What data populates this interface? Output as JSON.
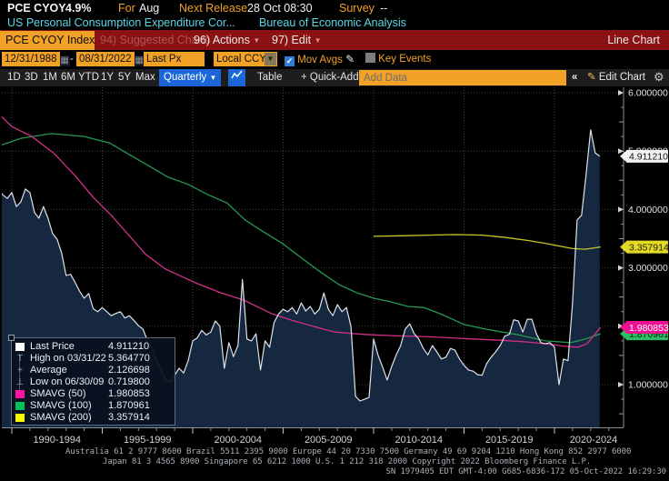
{
  "header": {
    "ticker": "PCE CYOY",
    "last_value": "4.9%",
    "for_label": "For",
    "for_value": "Aug",
    "next_release_label": "Next Release",
    "next_release_value": "28 Oct 08:30",
    "survey_label": "Survey",
    "survey_value": "--",
    "description": "US Personal Consumption Expenditure Cor...",
    "source": "Bureau of Economic Analysis"
  },
  "menubar": {
    "security_box": "PCE CYOY Index",
    "suggested_charts": "94) Suggested Charts",
    "actions": "96) Actions",
    "edit": "97) Edit",
    "right_label": "Line Chart"
  },
  "controls": {
    "date_from": "12/31/1988",
    "dash": "-",
    "date_to": "08/31/2022",
    "px_type": "Last Px",
    "currency": "Local CCY",
    "mov_avgs_label": "Mov Avgs",
    "mov_avgs_checked": true,
    "key_events_label": "Key Events",
    "key_events_checked": false
  },
  "toolbar": {
    "ranges": [
      "1D",
      "3D",
      "1M",
      "6M",
      "YTD",
      "1Y",
      "5Y",
      "Max"
    ],
    "period": "Quarterly",
    "table_label": "Table",
    "quick_add": "+ Quick-Add",
    "add_data_placeholder": "Add Data",
    "collapse_label": "«",
    "edit_chart_label": "Edit Chart"
  },
  "legend": {
    "rows": [
      {
        "key": "last-price",
        "marker": "swatch",
        "color": "#ffffff",
        "label": "Last Price",
        "value": "4.911210"
      },
      {
        "key": "high",
        "marker": "glyph",
        "glyph": "T",
        "label": "High on 03/31/22",
        "value": "5.364770"
      },
      {
        "key": "average",
        "marker": "glyph",
        "glyph": "+",
        "label": "Average",
        "value": "2.126698"
      },
      {
        "key": "low",
        "marker": "glyph",
        "glyph": "⊥",
        "label": "Low on 06/30/09",
        "value": "0.719800"
      },
      {
        "key": "smavg50",
        "marker": "swatch",
        "color": "#ff14a0",
        "label": "SMAVG (50)",
        "value": "1.980853"
      },
      {
        "key": "smavg100",
        "marker": "swatch",
        "color": "#00c35c",
        "label": "SMAVG (100)",
        "value": "1.870961"
      },
      {
        "key": "smavg200",
        "marker": "swatch",
        "color": "#f8f800",
        "label": "SMAVG (200)",
        "value": "3.357914"
      }
    ]
  },
  "chart_data": {
    "type": "line",
    "title": "PCE CYOY Index",
    "x_start_year": 1988.75,
    "x_step_years": 0.25,
    "ylim": [
      0.3,
      6.2
    ],
    "x_range_years": [
      1989.0,
      2022.67
    ],
    "grid": true,
    "x_gridline_years": [
      1990,
      1995,
      2000,
      2005,
      2010,
      2015,
      2020
    ],
    "x_labels": [
      "1990-1994",
      "1995-1999",
      "2000-2004",
      "2005-2009",
      "2010-2014",
      "2015-2019",
      "2020-2024"
    ],
    "y_ticks": [
      {
        "value": 6,
        "label": "6.000000"
      },
      {
        "value": 5,
        "label": "5.000000"
      },
      {
        "value": 4,
        "label": "4.000000"
      },
      {
        "value": 3,
        "label": "3.000000"
      },
      {
        "value": 2,
        "label": "2.000000"
      },
      {
        "value": 1,
        "label": "1.000000"
      }
    ],
    "series": [
      {
        "name": "Last Price",
        "color": "#dde3ea",
        "fill": "#16283f",
        "values": [
          4.6,
          4.52,
          4.36,
          4.25,
          4.19,
          4.29,
          4.05,
          4.13,
          4.35,
          4.29,
          3.95,
          3.85,
          4.05,
          3.85,
          3.59,
          3.49,
          3.26,
          2.87,
          2.89,
          2.75,
          2.6,
          2.48,
          2.56,
          2.3,
          2.25,
          2.32,
          2.25,
          2.18,
          2.22,
          2.25,
          2.14,
          2.18,
          2.1,
          2.01,
          1.95,
          1.75,
          1.62,
          1.4,
          1.25,
          1.08,
          1.05,
          1.16,
          1.28,
          1.2,
          1.41,
          1.75,
          1.8,
          1.93,
          1.85,
          1.9,
          2.09,
          2.0,
          1.28,
          1.72,
          1.48,
          1.67,
          2.8,
          1.78,
          1.75,
          1.87,
          1.25,
          1.75,
          1.64,
          2.06,
          2.21,
          2.29,
          2.25,
          2.32,
          2.21,
          2.4,
          2.26,
          2.34,
          2.21,
          2.29,
          2.57,
          2.29,
          2.18,
          2.37,
          2.25,
          2.32,
          2.0,
          0.8,
          0.72,
          0.75,
          0.78,
          1.78,
          1.5,
          1.3,
          1.08,
          1.31,
          1.51,
          1.67,
          1.95,
          2.04,
          1.87,
          1.78,
          1.62,
          1.51,
          1.67,
          1.56,
          1.44,
          1.47,
          1.62,
          1.59,
          1.44,
          1.33,
          1.25,
          1.23,
          1.17,
          1.16,
          1.36,
          1.47,
          1.56,
          1.67,
          1.83,
          1.86,
          2.11,
          2.09,
          1.9,
          2.12,
          2.12,
          1.87,
          1.72,
          1.7,
          1.72,
          1.64,
          1.0,
          1.44,
          1.41,
          2.4,
          3.82,
          3.9,
          4.6,
          5.36477,
          4.97,
          4.91121
        ]
      },
      {
        "name": "SMAVG (50)",
        "color": "#d42f87",
        "points": [
          [
            1988.75,
            5.8
          ],
          [
            1990.0,
            5.42
          ],
          [
            1991.1,
            5.25
          ],
          [
            1992.3,
            4.97
          ],
          [
            1993.5,
            4.58
          ],
          [
            1994.5,
            4.21
          ],
          [
            1995.5,
            3.9
          ],
          [
            1996.5,
            3.55
          ],
          [
            1997.4,
            3.23
          ],
          [
            1998.5,
            2.98
          ],
          [
            1999.4,
            2.85
          ],
          [
            2000.25,
            2.73
          ],
          [
            2001.5,
            2.58
          ],
          [
            2002.8,
            2.45
          ],
          [
            2004.4,
            2.21
          ],
          [
            2005.5,
            2.1
          ],
          [
            2006.9,
            1.98
          ],
          [
            2007.85,
            1.9
          ],
          [
            2009.5,
            1.86
          ],
          [
            2011.0,
            1.84
          ],
          [
            2013.0,
            1.82
          ],
          [
            2015.0,
            1.79
          ],
          [
            2017.0,
            1.76
          ],
          [
            2018.5,
            1.73
          ],
          [
            2019.5,
            1.7
          ],
          [
            2020.5,
            1.66
          ],
          [
            2021.3,
            1.64
          ],
          [
            2021.8,
            1.7
          ],
          [
            2022.2,
            1.85
          ],
          [
            2022.55,
            1.980853
          ]
        ]
      },
      {
        "name": "SMAVG (100)",
        "color": "#259951",
        "points": [
          [
            1988.75,
            5.03
          ],
          [
            1990.5,
            5.22
          ],
          [
            1992.2,
            5.3
          ],
          [
            1994.0,
            5.25
          ],
          [
            1995.4,
            5.14
          ],
          [
            1996.5,
            4.94
          ],
          [
            1997.5,
            4.76
          ],
          [
            1998.6,
            4.56
          ],
          [
            1999.75,
            4.43
          ],
          [
            2000.8,
            4.26
          ],
          [
            2001.9,
            4.11
          ],
          [
            2002.9,
            3.82
          ],
          [
            2003.9,
            3.62
          ],
          [
            2005.0,
            3.41
          ],
          [
            2006.1,
            3.15
          ],
          [
            2007.1,
            2.92
          ],
          [
            2008.1,
            2.71
          ],
          [
            2009.1,
            2.57
          ],
          [
            2010.0,
            2.48
          ],
          [
            2010.9,
            2.42
          ],
          [
            2011.9,
            2.34
          ],
          [
            2012.8,
            2.32
          ],
          [
            2013.8,
            2.2
          ],
          [
            2015.0,
            2.03
          ],
          [
            2016.2,
            1.95
          ],
          [
            2017.9,
            1.86
          ],
          [
            2019.5,
            1.75
          ],
          [
            2020.9,
            1.72
          ],
          [
            2021.7,
            1.78
          ],
          [
            2022.55,
            1.870961
          ]
        ]
      },
      {
        "name": "SMAVG (200)",
        "color": "#cdc42a",
        "points": [
          [
            2010.0,
            3.54
          ],
          [
            2011.5,
            3.55
          ],
          [
            2013.0,
            3.56
          ],
          [
            2014.5,
            3.57
          ],
          [
            2016.0,
            3.56
          ],
          [
            2017.3,
            3.52
          ],
          [
            2018.5,
            3.47
          ],
          [
            2019.5,
            3.42
          ],
          [
            2020.3,
            3.37
          ],
          [
            2021.0,
            3.33
          ],
          [
            2021.7,
            3.32
          ],
          [
            2022.55,
            3.357914
          ]
        ]
      }
    ],
    "axis_tags": [
      {
        "key": "smavg100",
        "text": "1.870961",
        "value": 1.870961,
        "bg": "#2bbf63",
        "fg": "#05230f"
      },
      {
        "key": "smavg50",
        "text": "1.980853",
        "value": 1.980853,
        "bg": "#ee1093",
        "fg": "#ffffff"
      },
      {
        "key": "smavg200",
        "text": "3.357914",
        "value": 3.357914,
        "bg": "#e3da25",
        "fg": "#1e1c03"
      },
      {
        "key": "last-price",
        "text": "4.911210",
        "value": 4.91121,
        "bg": "#f2f2f2",
        "fg": "#111111"
      }
    ]
  },
  "footer": {
    "line1": "Australia 61 2 9777 8600 Brazil 5511 2395 9000 Europe 44 20 7330 7500 Germany 49 69 9204 1210 Hong Kong 852 2977 6000",
    "line2": "Japan 81 3 4565 8900      Singapore 65 6212 1000      U.S. 1 212 318 2000      Copyright 2022 Bloomberg Finance L.P.",
    "line3": "SN 1979405 EDT  GMT-4:00 G685-6836-172 05-Oct-2022 16:29:30"
  }
}
